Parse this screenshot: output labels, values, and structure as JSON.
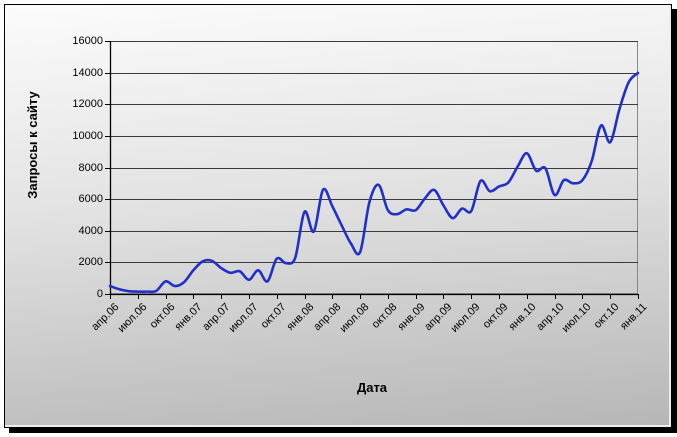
{
  "frame": {
    "page_background": "#ffffff",
    "border_color": "#000000",
    "shadow_color": "#000000",
    "chart_bg_top": "#fcfcfc",
    "chart_bg_bottom": "#b6b6b6",
    "gridline_color": "#3a3a3a",
    "plot_border_color": "#878787",
    "axis_color": "#000000"
  },
  "chart_data": {
    "type": "line",
    "title": "",
    "ylabel": "Запросы к сайту",
    "xlabel": "Дата",
    "ylim": [
      0,
      16000
    ],
    "y_ticks": [
      0,
      2000,
      4000,
      6000,
      8000,
      10000,
      12000,
      14000,
      16000
    ],
    "x_tick_labels": [
      "апр.06",
      "июл.06",
      "окт.06",
      "янв.07",
      "апр.07",
      "июл.07",
      "окт.07",
      "янв.08",
      "апр.08",
      "июл.08",
      "окт.08",
      "янв.09",
      "апр.09",
      "июл.09",
      "окт.09",
      "янв.10",
      "апр.10",
      "июл.10",
      "окт.10",
      "янв.11"
    ],
    "x_tick_every_n_points": 3,
    "grid": true,
    "legend_position": "none",
    "smooth": true,
    "line_color": "#2130c8",
    "line_width": 2.6,
    "series": [
      {
        "name": "Запросы к сайту",
        "start": "апр.06",
        "frequency": "monthly",
        "values": [
          500,
          300,
          180,
          150,
          150,
          200,
          800,
          500,
          750,
          1500,
          2060,
          2100,
          1640,
          1340,
          1440,
          900,
          1500,
          800,
          2230,
          1950,
          2300,
          5200,
          3950,
          6600,
          5550,
          4350,
          3200,
          2650,
          5800,
          6900,
          5300,
          5050,
          5350,
          5300,
          6050,
          6580,
          5600,
          4800,
          5400,
          5250,
          7150,
          6500,
          6800,
          7050,
          8050,
          8900,
          7800,
          7950,
          6260,
          7200,
          7000,
          7200,
          8400,
          10650,
          9600,
          11700,
          13400,
          13980
        ]
      }
    ]
  }
}
